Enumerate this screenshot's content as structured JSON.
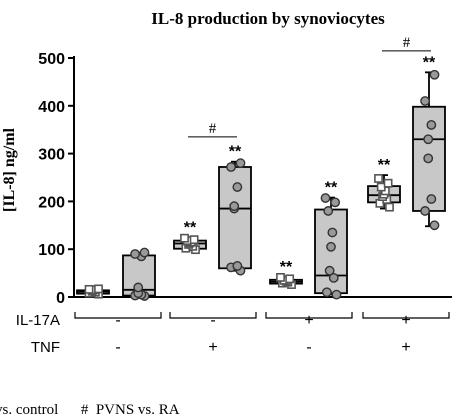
{
  "chart_data": {
    "type": "box",
    "title": "IL-8 production by synoviocytes",
    "ylabel": "[IL-8] ng/ml",
    "ylim": [
      0,
      500
    ],
    "yticks": [
      0,
      100,
      200,
      300,
      400,
      500
    ],
    "row_labels": [
      "IL-17A",
      "TNF"
    ],
    "conditions": [
      {
        "il17a": "-",
        "tnf": "-"
      },
      {
        "il17a": "-",
        "tnf": "+"
      },
      {
        "il17a": "+",
        "tnf": "-"
      },
      {
        "il17a": "+",
        "tnf": "+"
      }
    ],
    "groups": [
      {
        "condition": 0,
        "fill": "#c8c8c8",
        "marker": "square",
        "min": 5,
        "q1": 7,
        "median": 11,
        "q3": 14,
        "max": 18,
        "points": [
          6,
          8,
          10,
          12,
          14,
          15,
          16,
          17
        ],
        "annotation": ""
      },
      {
        "condition": 0,
        "fill": "#c8c8c8",
        "marker": "circle",
        "min": 2,
        "q1": 3,
        "median": 15,
        "q3": 87,
        "max": 93,
        "points": [
          2,
          3,
          5,
          8,
          20,
          85,
          90,
          93
        ],
        "annotation": ""
      },
      {
        "condition": 1,
        "fill": "#c8c8c8",
        "marker": "square",
        "min": 98,
        "q1": 101,
        "median": 112,
        "q3": 118,
        "max": 125,
        "points": [
          99,
          102,
          106,
          110,
          113,
          115,
          118,
          120,
          123
        ],
        "annotation": "**"
      },
      {
        "condition": 1,
        "fill": "#c8c8c8",
        "marker": "circle",
        "min": 55,
        "q1": 60,
        "median": 185,
        "q3": 272,
        "max": 283,
        "points": [
          55,
          62,
          65,
          185,
          190,
          230,
          272,
          280
        ],
        "annotation": "**"
      },
      {
        "condition": 2,
        "fill": "#c8c8c8",
        "marker": "square",
        "min": 25,
        "q1": 28,
        "median": 32,
        "q3": 36,
        "max": 42,
        "points": [
          26,
          29,
          31,
          33,
          35,
          38,
          41
        ],
        "annotation": "**"
      },
      {
        "condition": 2,
        "fill": "#c8c8c8",
        "marker": "circle",
        "min": 5,
        "q1": 8,
        "median": 45,
        "q3": 183,
        "max": 208,
        "points": [
          5,
          10,
          40,
          55,
          105,
          135,
          180,
          198,
          207
        ],
        "annotation": "**"
      },
      {
        "condition": 3,
        "fill": "#c8c8c8",
        "marker": "square",
        "min": 185,
        "q1": 198,
        "median": 213,
        "q3": 232,
        "max": 255,
        "points": [
          188,
          196,
          204,
          210,
          215,
          222,
          230,
          238,
          248
        ],
        "annotation": "**"
      },
      {
        "condition": 3,
        "fill": "#c8c8c8",
        "marker": "circle",
        "min": 148,
        "q1": 180,
        "median": 330,
        "q3": 398,
        "max": 470,
        "points": [
          150,
          180,
          205,
          290,
          330,
          360,
          410,
          465
        ],
        "annotation": "**"
      }
    ],
    "brackets": [
      {
        "label": "#",
        "groups": [
          2,
          3
        ],
        "value": 335
      },
      {
        "label": "#",
        "groups": [
          6,
          7
        ],
        "value": 515
      }
    ],
    "legend_text": "vs. control      #  PVNS vs. RA"
  }
}
